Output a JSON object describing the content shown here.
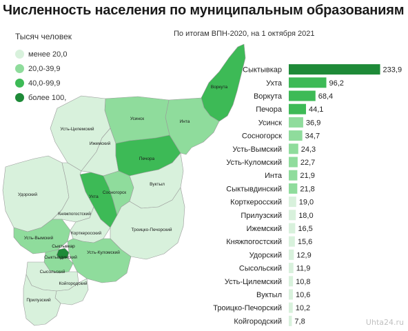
{
  "title": "Численность населения по муниципальным образованиям",
  "subtitle": "По итогам ВПН-2020, на 1 октября 2021",
  "legend": {
    "title": "Тысяч человек",
    "items": [
      {
        "label": "менее 20,0",
        "color": "#d8f1dc"
      },
      {
        "label": "20,0-39,9",
        "color": "#8fdc9c"
      },
      {
        "label": "40,0-99,9",
        "color": "#3dba56"
      },
      {
        "label": "более 100,",
        "color": "#1e8a38"
      }
    ]
  },
  "watermark": "Uhta24.ru",
  "map": {
    "regions": [
      {
        "name": "Воркута",
        "class": 2
      },
      {
        "name": "Инта",
        "class": 1
      },
      {
        "name": "Усинск",
        "class": 1
      },
      {
        "name": "Усть-Цилемский",
        "class": 0
      },
      {
        "name": "Ижемский",
        "class": 0
      },
      {
        "name": "Печора",
        "class": 2
      },
      {
        "name": "Ухта",
        "class": 2
      },
      {
        "name": "Сосногорск",
        "class": 1
      },
      {
        "name": "Вуктыл",
        "class": 0
      },
      {
        "name": "Удорский",
        "class": 0
      },
      {
        "name": "Княжпогостский",
        "class": 0
      },
      {
        "name": "Корткеросский",
        "class": 0
      },
      {
        "name": "Троицко-Печорский",
        "class": 0
      },
      {
        "name": "Усть-Вымский",
        "class": 1
      },
      {
        "name": "Сыктывкар",
        "class": 3
      },
      {
        "name": "Сыктывдинский",
        "class": 1
      },
      {
        "name": "Усть-Куломский",
        "class": 1
      },
      {
        "name": "Сысольский",
        "class": 0
      },
      {
        "name": "Койгородский",
        "class": 0
      },
      {
        "name": "Прилузский",
        "class": 0
      }
    ]
  },
  "chart_data": {
    "type": "bar",
    "orientation": "horizontal",
    "title": "Численность населения по муниципальным образованиям",
    "subtitle": "По итогам ВПН-2020, на 1 октября 2021",
    "unit": "Тысяч человек",
    "categories": [
      "Сыктывкар",
      "Ухта",
      "Воркута",
      "Печора",
      "Усинск",
      "Сосногорск",
      "Усть-Вымский",
      "Усть-Куломский",
      "Инта",
      "Сыктывдинский",
      "Корткеросский",
      "Прилузский",
      "Ижемский",
      "Княжпогостский",
      "Удорский",
      "Сысольский",
      "Усть-Цилемский",
      "Вуктыл",
      "Троицко-Печорский",
      "Койгородский"
    ],
    "values": [
      233.9,
      96.2,
      68.4,
      44.1,
      36.9,
      34.7,
      24.3,
      22.7,
      21.9,
      21.8,
      19.0,
      18.0,
      16.5,
      15.6,
      12.9,
      11.9,
      10.8,
      10.6,
      10.2,
      7.8
    ],
    "value_labels": [
      "233,9",
      "96,2",
      "68,4",
      "44,1",
      "36,9",
      "34,7",
      "24,3",
      "22,7",
      "21,9",
      "21,8",
      "19,0",
      "18,0",
      "16,5",
      "15,6",
      "12,9",
      "11,9",
      "10,8",
      "10,6",
      "10,2",
      "7,8"
    ],
    "xlim": [
      0,
      240
    ],
    "grid": false,
    "legend_placement": "top-left"
  }
}
